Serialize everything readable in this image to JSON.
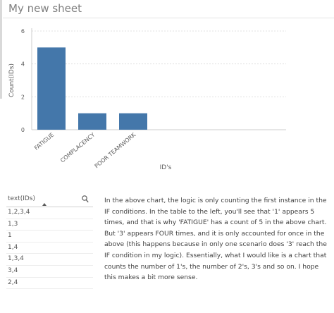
{
  "sheet": {
    "title": "My new sheet"
  },
  "colors": {
    "bar": "#4477aa",
    "axis": "#cccccc",
    "grid": "#e0e0e0",
    "text": "#595959"
  },
  "chart_data": {
    "type": "bar",
    "categories": [
      "FATIGUE",
      "COMPLACENCY",
      "POOR TEAMWORK"
    ],
    "values": [
      5,
      1,
      1
    ],
    "xlabel": "ID's",
    "ylabel": "Count(IDs)",
    "ylim": [
      0,
      6
    ],
    "yticks": [
      0,
      2,
      4,
      6
    ],
    "grid": true
  },
  "table": {
    "column_header": "text(IDs)",
    "rows": [
      "1,2,3,4",
      "1,3",
      "1",
      "1,4",
      "1,3,4",
      "3,4",
      "2,4"
    ]
  },
  "note": {
    "text": "In the above chart, the logic is only counting the first instance in the IF conditions. In the table to the left, you'll see that '1' appears 5 times, and that is why 'FATIGUE' has a count of 5 in the above chart. But '3' appears FOUR times, and it is only accounted for once in the above (this happens because in only one scenario does '3' reach the IF condition in my logic). Essentially, what I would like is a chart that counts the number of 1's, the number of 2's, 3's and so on. I hope this makes a bit more sense."
  }
}
